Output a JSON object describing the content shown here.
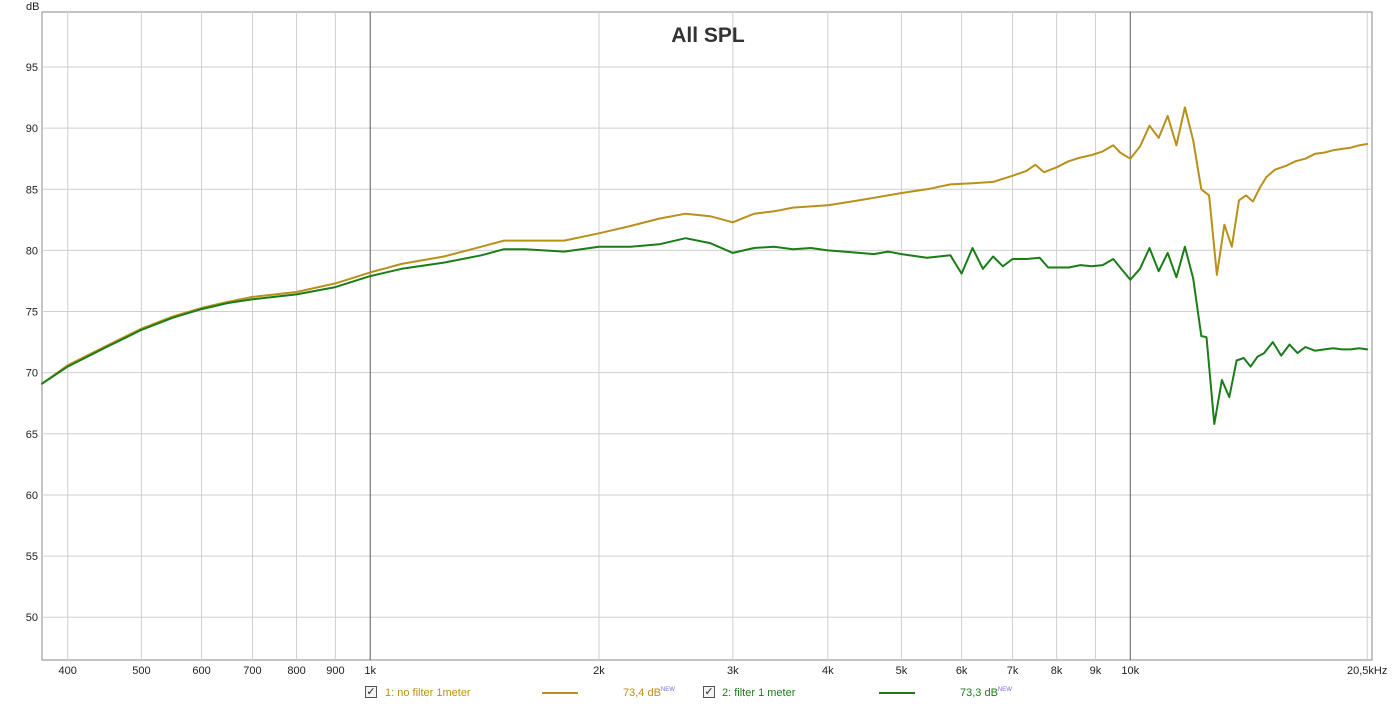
{
  "chart_data": {
    "type": "line",
    "title": "All SPL",
    "ylabel": "dB",
    "xscale": "log",
    "xlim": [
      370,
      20800
    ],
    "ylim": [
      46.5,
      99.5
    ],
    "grid": true,
    "y_ticks": [
      50,
      55,
      60,
      65,
      70,
      75,
      80,
      85,
      90,
      95
    ],
    "x_ticks": [
      {
        "value": 400,
        "label": "400"
      },
      {
        "value": 500,
        "label": "500"
      },
      {
        "value": 600,
        "label": "600"
      },
      {
        "value": 700,
        "label": "700"
      },
      {
        "value": 800,
        "label": "800"
      },
      {
        "value": 900,
        "label": "900"
      },
      {
        "value": 1000,
        "label": "1k"
      },
      {
        "value": 2000,
        "label": "2k"
      },
      {
        "value": 3000,
        "label": "3k"
      },
      {
        "value": 4000,
        "label": "4k"
      },
      {
        "value": 5000,
        "label": "5k"
      },
      {
        "value": 6000,
        "label": "6k"
      },
      {
        "value": 7000,
        "label": "7k"
      },
      {
        "value": 8000,
        "label": "8k"
      },
      {
        "value": 9000,
        "label": "9k"
      },
      {
        "value": 10000,
        "label": "10k"
      },
      {
        "value": 20500,
        "label": "20,5kHz"
      }
    ],
    "series": [
      {
        "name": "1: no filter 1meter",
        "color": "#b8901a",
        "value_label": "73,4 dB",
        "x": [
          370,
          400,
          450,
          500,
          550,
          600,
          650,
          700,
          800,
          900,
          1000,
          1100,
          1250,
          1400,
          1500,
          1600,
          1800,
          2000,
          2200,
          2400,
          2600,
          2800,
          3000,
          3200,
          3400,
          3600,
          3800,
          4000,
          4200,
          4400,
          4600,
          4800,
          5000,
          5400,
          5800,
          6200,
          6600,
          7000,
          7300,
          7500,
          7700,
          8000,
          8300,
          8600,
          8900,
          9200,
          9500,
          9700,
          10000,
          10300,
          10600,
          10900,
          11200,
          11500,
          11800,
          12100,
          12400,
          12700,
          13000,
          13300,
          13600,
          13900,
          14200,
          14500,
          14800,
          15100,
          15500,
          16000,
          16500,
          17000,
          17500,
          18000,
          18500,
          19000,
          19500,
          20000,
          20500
        ],
        "y": [
          69.1,
          70.6,
          72.2,
          73.6,
          74.6,
          75.3,
          75.8,
          76.2,
          76.6,
          77.3,
          78.2,
          78.9,
          79.5,
          80.3,
          80.8,
          80.8,
          80.8,
          81.4,
          82.0,
          82.6,
          83.0,
          82.8,
          82.3,
          83.0,
          83.2,
          83.5,
          83.6,
          83.7,
          83.9,
          84.1,
          84.3,
          84.5,
          84.7,
          85.0,
          85.4,
          85.5,
          85.6,
          86.1,
          86.5,
          87.0,
          86.4,
          86.8,
          87.3,
          87.6,
          87.8,
          88.1,
          88.6,
          88.0,
          87.5,
          88.5,
          90.2,
          89.2,
          91.0,
          88.6,
          91.7,
          89.0,
          85.0,
          84.5,
          78.0,
          82.1,
          80.3,
          84.1,
          84.5,
          84.0,
          85.1,
          86.0,
          86.6,
          86.9,
          87.3,
          87.5,
          87.9,
          88.0,
          88.2,
          88.3,
          88.4,
          88.6,
          88.7
        ]
      },
      {
        "name": "2: filter 1 meter",
        "color": "#1a7d18",
        "value_label": "73,3 dB",
        "x": [
          370,
          400,
          450,
          500,
          550,
          600,
          650,
          700,
          800,
          900,
          1000,
          1100,
          1250,
          1400,
          1500,
          1600,
          1800,
          2000,
          2200,
          2400,
          2600,
          2800,
          3000,
          3200,
          3400,
          3600,
          3800,
          4000,
          4200,
          4400,
          4600,
          4800,
          5000,
          5400,
          5800,
          6000,
          6200,
          6400,
          6600,
          6800,
          7000,
          7300,
          7600,
          7800,
          8000,
          8300,
          8600,
          8900,
          9200,
          9500,
          9700,
          10000,
          10300,
          10600,
          10900,
          11200,
          11500,
          11800,
          12100,
          12400,
          12600,
          12900,
          13200,
          13500,
          13800,
          14100,
          14400,
          14700,
          15000,
          15400,
          15800,
          16200,
          16600,
          17000,
          17500,
          18000,
          18500,
          19000,
          19500,
          20000,
          20500
        ],
        "y": [
          69.1,
          70.5,
          72.1,
          73.5,
          74.5,
          75.2,
          75.7,
          76.0,
          76.4,
          77.0,
          77.9,
          78.5,
          79.0,
          79.6,
          80.1,
          80.1,
          79.9,
          80.3,
          80.3,
          80.5,
          81.0,
          80.6,
          79.8,
          80.2,
          80.3,
          80.1,
          80.2,
          80.0,
          79.9,
          79.8,
          79.7,
          79.9,
          79.7,
          79.4,
          79.6,
          78.1,
          80.2,
          78.5,
          79.5,
          78.7,
          79.3,
          79.3,
          79.4,
          78.6,
          78.6,
          78.6,
          78.8,
          78.7,
          78.8,
          79.3,
          78.6,
          77.6,
          78.5,
          80.2,
          78.3,
          79.8,
          77.8,
          80.3,
          77.7,
          73.0,
          72.9,
          65.8,
          69.4,
          68.0,
          71.0,
          71.2,
          70.5,
          71.3,
          71.6,
          72.5,
          71.4,
          72.3,
          71.6,
          72.1,
          71.8,
          71.9,
          72.0,
          71.9,
          71.9,
          72.0,
          71.9
        ]
      }
    ]
  },
  "legend": {
    "check_mark": "✓",
    "new_badge": "NEW"
  }
}
